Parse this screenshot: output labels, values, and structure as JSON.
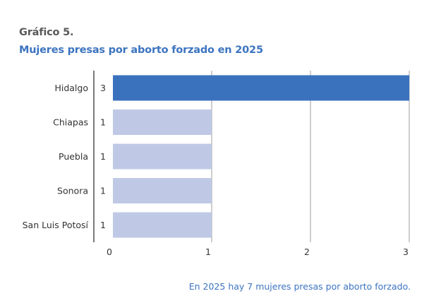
{
  "heading": "Gráfico 5.",
  "title": "Mujeres presas por aborto forzado en 2025",
  "note": "En 2025 hay 7 mujeres presas por aborto forzado.",
  "colors": {
    "highlight_bar": "#3b72bd",
    "bar": "#bfc9e6",
    "grid": "#9e9e9e",
    "axis": "#222222",
    "label": "#333333"
  },
  "chart_data": {
    "type": "bar",
    "orientation": "horizontal",
    "categories": [
      "Hidalgo",
      "Chiapas",
      "Puebla",
      "Sonora",
      "San Luis Potosí"
    ],
    "values": [
      3,
      1,
      1,
      1,
      1
    ],
    "value_labels": [
      "3",
      "1",
      "1",
      "1",
      "1"
    ],
    "xlim": [
      0,
      3
    ],
    "x_ticks": [
      0,
      1,
      2,
      3
    ],
    "x_tick_labels": [
      "0",
      "1",
      "2",
      "3"
    ],
    "grid": true,
    "highlight_index": 0
  }
}
